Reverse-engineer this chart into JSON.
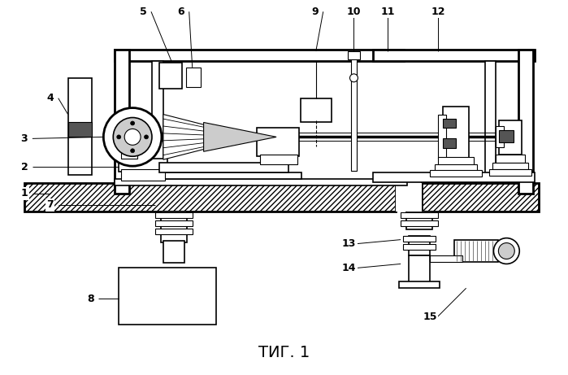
{
  "title": "ΤИГ. 1",
  "bg_color": "#ffffff",
  "figsize": [
    6.99,
    4.61
  ],
  "dpi": 100
}
